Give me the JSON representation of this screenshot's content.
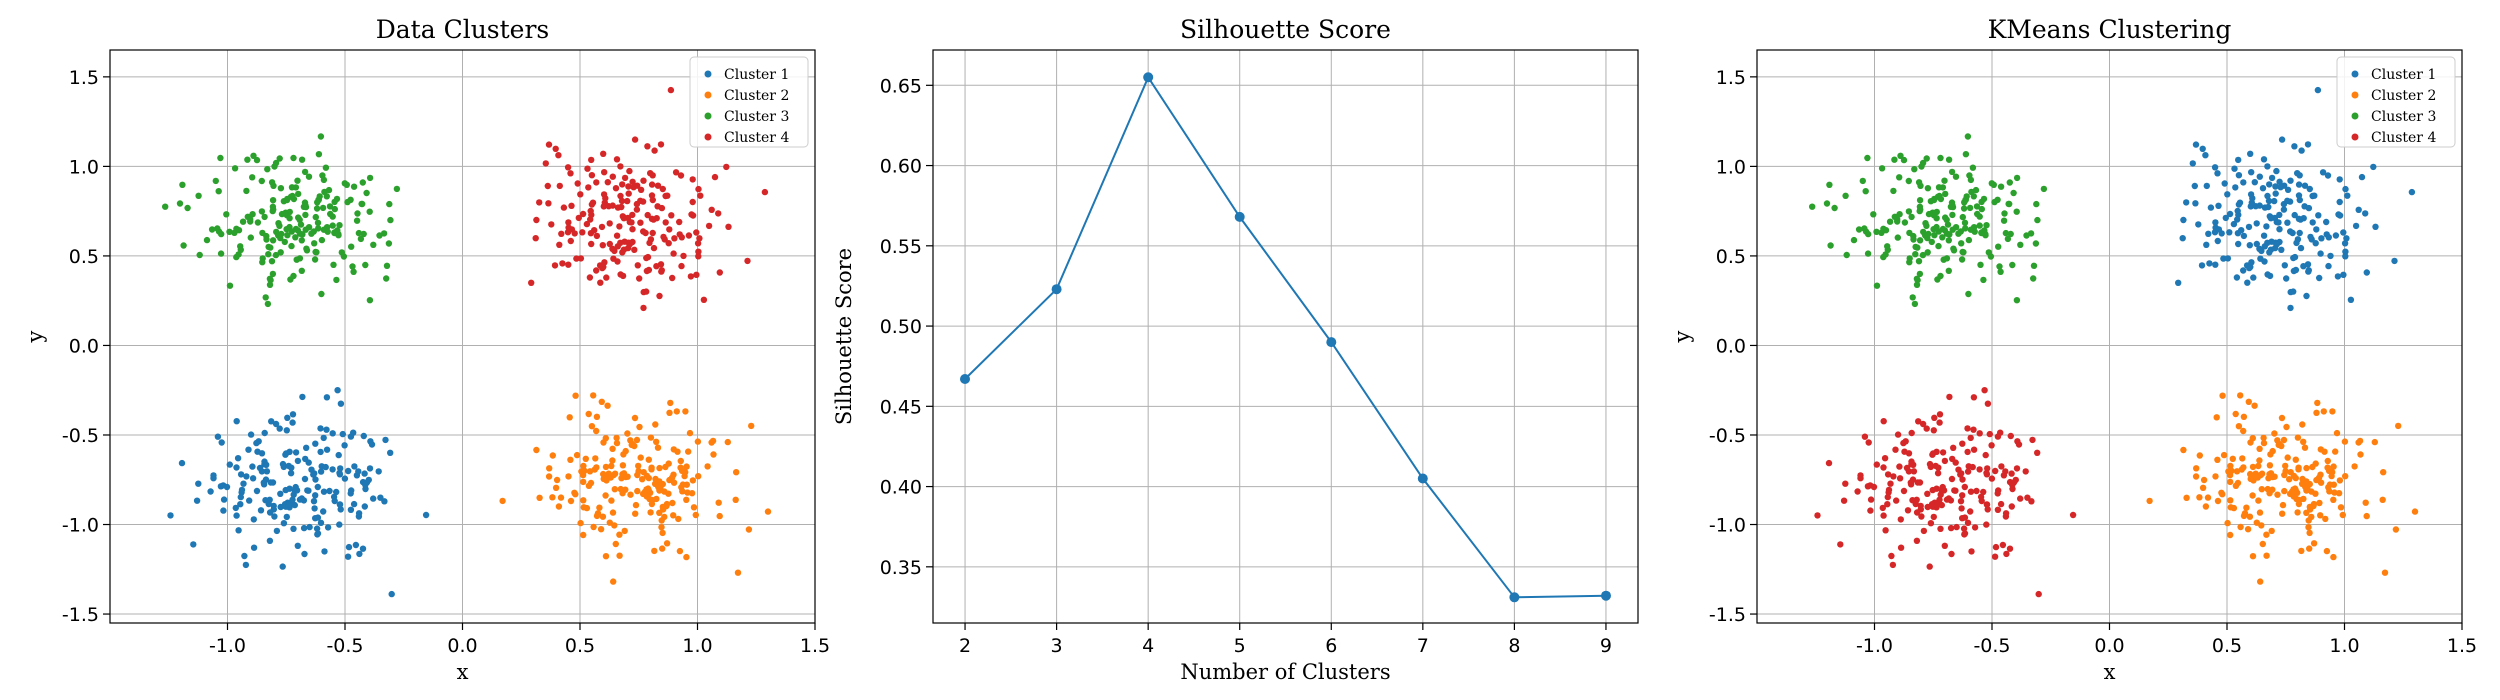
{
  "colors": {
    "c1": "#1f77b4",
    "c2": "#ff7f0e",
    "c3": "#2ca02c",
    "c4": "#d62728",
    "grid": "#b0b0b0"
  },
  "legend_labels": [
    "Cluster 1",
    "Cluster 2",
    "Cluster 3",
    "Cluster 4"
  ],
  "chart_data": [
    {
      "type": "scatter",
      "title": "Data Clusters",
      "xlabel": "x",
      "ylabel": "y",
      "xlim": [
        -1.5,
        1.5
      ],
      "ylim": [
        -1.55,
        1.65
      ],
      "xticks": [
        "-1.0",
        "-0.5",
        "0.0",
        "0.5",
        "1.0",
        "1.5"
      ],
      "yticks": [
        "-1.5",
        "-1.0",
        "-0.5",
        "0.0",
        "0.5",
        "1.0",
        "1.5"
      ],
      "grid": true,
      "legend": "top-right",
      "series": [
        {
          "name": "Cluster 1",
          "center": [
            -0.7,
            -0.75
          ],
          "spread": 0.2,
          "n": 200
        },
        {
          "name": "Cluster 2",
          "center": [
            0.7,
            -0.75
          ],
          "spread": 0.2,
          "n": 200
        },
        {
          "name": "Cluster 3",
          "center": [
            -0.7,
            0.7
          ],
          "spread": 0.2,
          "n": 200
        },
        {
          "name": "Cluster 4",
          "center": [
            0.7,
            0.7
          ],
          "spread": 0.2,
          "n": 200
        }
      ]
    },
    {
      "type": "line",
      "title": "Silhouette Score",
      "xlabel": "Number of Clusters",
      "ylabel": "Silhouette Score",
      "x": [
        2,
        3,
        4,
        5,
        6,
        7,
        8,
        9
      ],
      "values": [
        0.467,
        0.523,
        0.655,
        0.568,
        0.49,
        0.405,
        0.331,
        0.332
      ],
      "xlim": [
        1.65,
        9.35
      ],
      "ylim": [
        0.315,
        0.672
      ],
      "xticks": [
        "2",
        "3",
        "4",
        "5",
        "6",
        "7",
        "8",
        "9"
      ],
      "yticks": [
        "0.35",
        "0.40",
        "0.45",
        "0.50",
        "0.55",
        "0.60",
        "0.65"
      ],
      "grid": true
    },
    {
      "type": "scatter",
      "title": "KMeans Clustering",
      "xlabel": "x",
      "ylabel": "y",
      "xlim": [
        -1.5,
        1.5
      ],
      "ylim": [
        -1.55,
        1.65
      ],
      "xticks": [
        "-1.0",
        "-0.5",
        "0.0",
        "0.5",
        "1.0",
        "1.5"
      ],
      "yticks": [
        "-1.5",
        "-1.0",
        "-0.5",
        "0.0",
        "0.5",
        "1.0",
        "1.5"
      ],
      "grid": true,
      "legend": "top-right",
      "series": [
        {
          "name": "Cluster 1",
          "center": [
            0.7,
            0.7
          ],
          "spread": 0.2,
          "n": 200
        },
        {
          "name": "Cluster 2",
          "center": [
            0.7,
            -0.75
          ],
          "spread": 0.2,
          "n": 200
        },
        {
          "name": "Cluster 3",
          "center": [
            -0.7,
            0.7
          ],
          "spread": 0.2,
          "n": 200
        },
        {
          "name": "Cluster 4",
          "center": [
            -0.7,
            -0.75
          ],
          "spread": 0.2,
          "n": 200
        }
      ]
    }
  ]
}
